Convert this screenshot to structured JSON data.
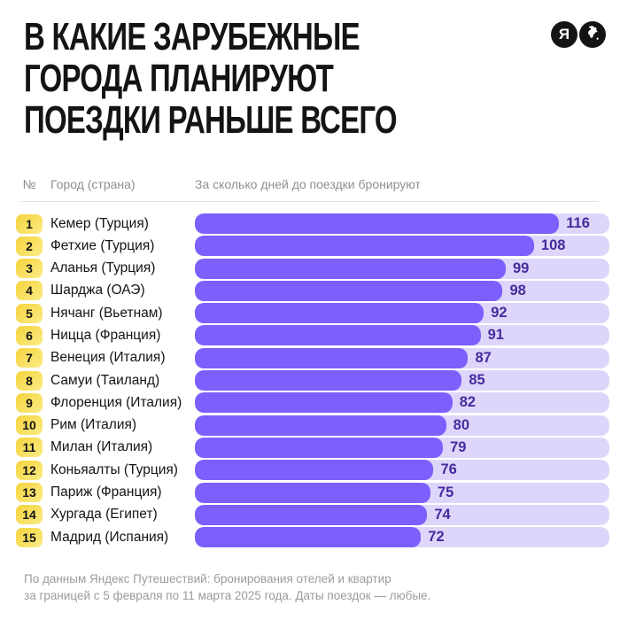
{
  "title_lines": [
    "В КАКИЕ ЗАРУБЕЖНЫЕ",
    "ГОРОДА ПЛАНИРУЮТ",
    "ПОЕЗДКИ РАНЬШЕ ВСЕГО"
  ],
  "logo": {
    "letter": "Я"
  },
  "table_headers": {
    "rank": "№",
    "city": "Город (страна)",
    "value": "За сколько дней до поездки бронируют"
  },
  "chart_data": {
    "type": "bar",
    "orientation": "horizontal",
    "title": "В какие зарубежные города планируют поездки раньше всего",
    "xlabel": "За сколько дней до поездки бронируют",
    "xlim": [
      0,
      132
    ],
    "grid": false,
    "categories": [
      "Кемер (Турция)",
      "Фетхие (Турция)",
      "Аланья (Турция)",
      "Шарджа (ОАЭ)",
      "Нячанг (Вьетнам)",
      "Ницца (Франция)",
      "Венеция (Италия)",
      "Самуи (Таиланд)",
      "Флоренция (Италия)",
      "Рим (Италия)",
      "Милан (Италия)",
      "Коньяалты (Турция)",
      "Париж (Франция)",
      "Хургада (Египет)",
      "Мадрид (Испания)"
    ],
    "values": [
      116,
      108,
      99,
      98,
      92,
      91,
      87,
      85,
      82,
      80,
      79,
      76,
      75,
      74,
      72
    ],
    "ranks": [
      1,
      2,
      3,
      4,
      5,
      6,
      7,
      8,
      9,
      10,
      11,
      12,
      13,
      14,
      15
    ]
  },
  "colors": {
    "bar_fill": "#7c5ffc",
    "bar_track": "#ded6fa",
    "value_text": "#472a9e",
    "badge_yellow": "#f7d748",
    "badge_yellow_light": "#fae97e",
    "title_text": "#141414",
    "header_text": "#8f8f93",
    "footer_text": "#9b9b9b"
  },
  "footer": {
    "line1": "По данным Яндекс Путешествий: бронирования отелей и квартир",
    "line2": "за границей с 5 февраля по 11 марта 2025 года. Даты поездок — любые."
  }
}
